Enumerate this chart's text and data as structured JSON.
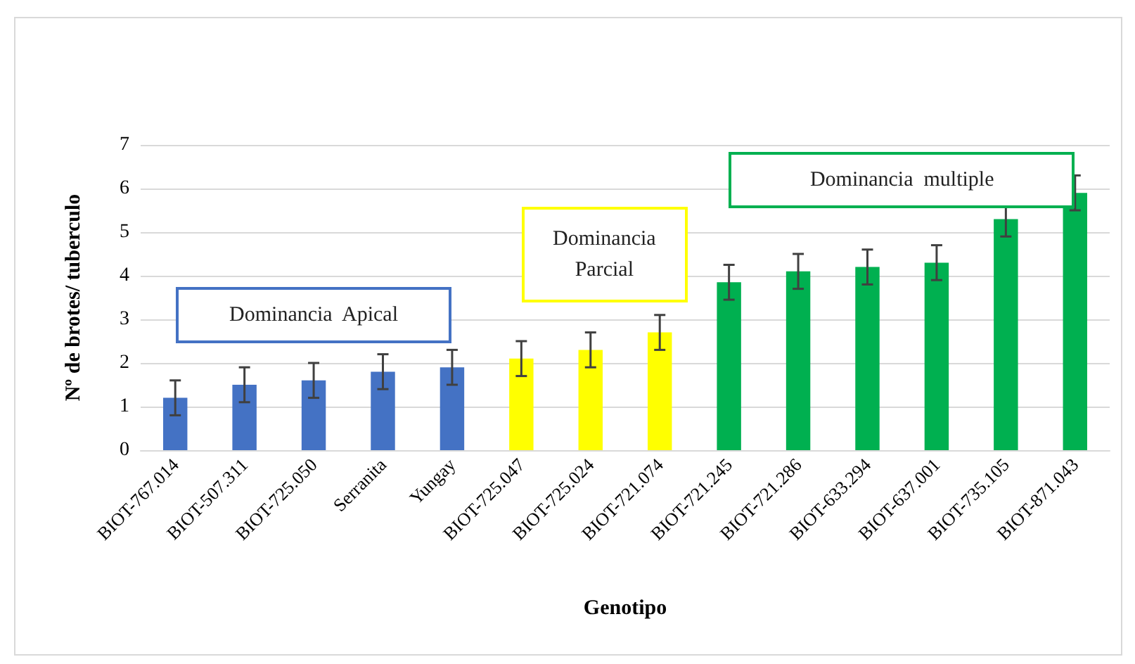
{
  "chart_data": {
    "type": "bar",
    "xlabel": "Genotipo",
    "ylabel": "Nº de brotes/ tuberculo",
    "categories": [
      "BIOT-767.014",
      "BIOT-507.311",
      "BIOT-725.050",
      "Serranita",
      "Yungay",
      "BIOT-725.047",
      "BIOT-725.024",
      "BIOT-721.074",
      "BIOT-721.245",
      "BIOT-721.286",
      "BIOT-633.294",
      "BIOT-637.001",
      "BIOT-735.105",
      "BIOT-871.043"
    ],
    "values": [
      1.2,
      1.5,
      1.6,
      1.8,
      1.9,
      2.1,
      2.3,
      2.7,
      3.85,
      4.1,
      4.2,
      4.3,
      5.3,
      5.9
    ],
    "errors": [
      0.4,
      0.4,
      0.4,
      0.4,
      0.4,
      0.4,
      0.4,
      0.4,
      0.4,
      0.4,
      0.4,
      0.4,
      0.4,
      0.4
    ],
    "colors": [
      "#4472c4",
      "#4472c4",
      "#4472c4",
      "#4472c4",
      "#4472c4",
      "#ffff00",
      "#ffff00",
      "#ffff00",
      "#00b050",
      "#00b050",
      "#00b050",
      "#00b050",
      "#00b050",
      "#00b050"
    ],
    "annotations": [
      "Dominancia  Apical",
      "Dominancia\nParcial",
      "Dominancia  multiple"
    ],
    "ylim": [
      0,
      7
    ],
    "yticks": [
      0,
      1,
      2,
      3,
      4,
      5,
      6,
      7
    ],
    "grid": "y"
  }
}
